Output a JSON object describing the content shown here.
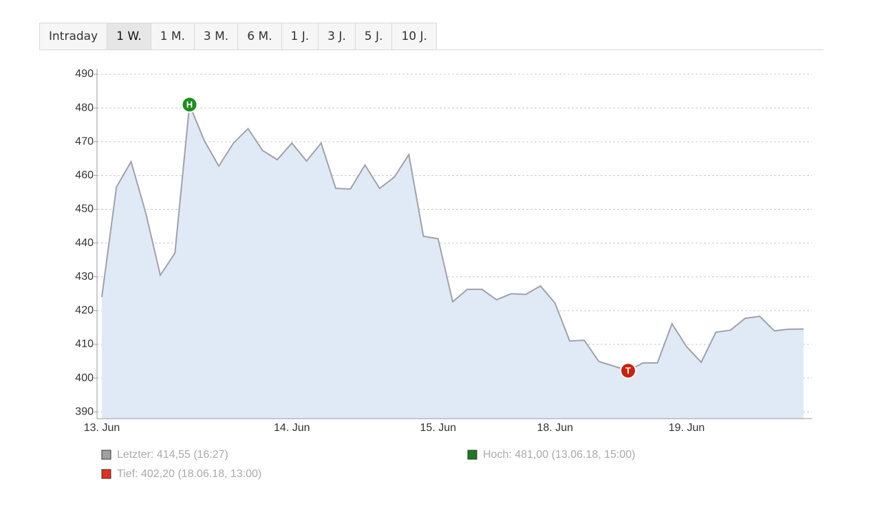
{
  "tabs": [
    {
      "label": "Intraday"
    },
    {
      "label": "1 W.",
      "active": true
    },
    {
      "label": "1 M."
    },
    {
      "label": "3 M."
    },
    {
      "label": "6 M."
    },
    {
      "label": "1 J."
    },
    {
      "label": "3 J."
    },
    {
      "label": "5 J."
    },
    {
      "label": "10 J."
    }
  ],
  "chart_data": {
    "type": "area",
    "categories": [
      "13. Jun",
      null,
      null,
      null,
      null,
      null,
      null,
      null,
      null,
      null,
      null,
      null,
      null,
      "14. Jun",
      null,
      null,
      null,
      null,
      null,
      null,
      null,
      null,
      null,
      "15. Jun",
      null,
      null,
      null,
      null,
      null,
      null,
      null,
      "18. Jun",
      null,
      null,
      null,
      null,
      null,
      null,
      null,
      null,
      "19. Jun",
      null,
      null,
      null,
      null,
      null,
      null,
      null,
      null
    ],
    "series": [
      {
        "name": "Letzter",
        "color": "#a0a0a8",
        "fill": "#dfeaf6",
        "values": [
          424,
          456.6,
          464.1,
          449,
          430.5,
          437,
          481,
          470.4,
          462.8,
          469.6,
          473.9,
          467.4,
          464.7,
          469.6,
          464.3,
          469.6,
          456.2,
          456,
          463.1,
          456.2,
          459.5,
          466.2,
          442,
          441.3,
          422.6,
          426.3,
          426.3,
          423.2,
          425,
          424.8,
          427.3,
          422.2,
          411,
          411.2,
          404.9,
          403.6,
          402.2,
          404.5,
          404.5,
          416.1,
          409.3,
          404.7,
          413.6,
          414.2,
          417.7,
          418.3,
          414,
          414.5,
          414.55
        ]
      }
    ],
    "high_marker": {
      "label": "H",
      "color": "#1e8c1e"
    },
    "low_marker": {
      "label": "T",
      "color": "#c8230f"
    },
    "ylim": [
      388,
      490
    ],
    "yticks": [
      390,
      400,
      410,
      420,
      430,
      440,
      450,
      460,
      470,
      480,
      490
    ],
    "grid": true,
    "legend": [
      {
        "label": "Letzter: 414,55 (16:27)",
        "color": "#a0a0a0"
      },
      {
        "label": "Hoch: 481,00 (13.06.18, 15:00)",
        "color": "#1e7a1e"
      },
      {
        "label": "Tief: 402,20 (18.06.18, 13:00)",
        "color": "#e0301e"
      }
    ]
  }
}
